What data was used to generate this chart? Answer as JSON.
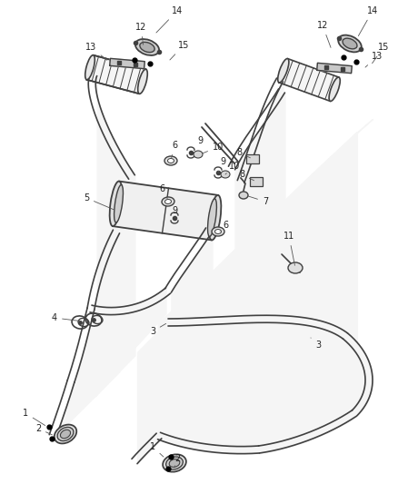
{
  "bg_color": "#ffffff",
  "line_color": "#404040",
  "label_color": "#222222",
  "fig_width": 4.38,
  "fig_height": 5.33,
  "dpi": 100
}
